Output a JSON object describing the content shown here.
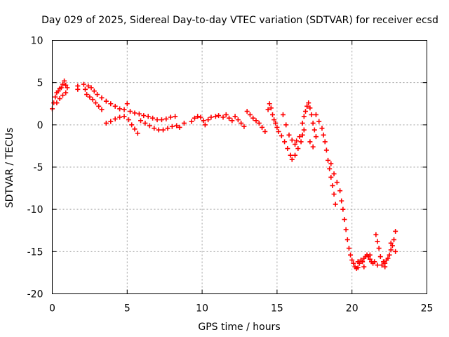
{
  "chart_data": {
    "type": "scatter",
    "title": "Day 029 of 2025, Sidereal Day-to-day VTEC variation (SDTVAR) for receiver ecsd",
    "xlabel": "GPS time / hours",
    "ylabel": "SDTVAR / TECUs",
    "xlim": [
      0,
      25
    ],
    "ylim": [
      -20,
      10
    ],
    "x_ticks": [
      0,
      5,
      10,
      15,
      20,
      25
    ],
    "y_ticks": [
      10,
      5,
      0,
      -5,
      -10,
      -15,
      -20
    ],
    "x_tick_labels": [
      "0",
      "5",
      "10",
      "15",
      "20",
      "25"
    ],
    "y_tick_labels": [
      "10",
      "5",
      "0",
      "-5",
      "-10",
      "-15",
      "-20"
    ],
    "grid": true,
    "marker": "plus",
    "series_color": "#ff0000",
    "series": [
      {
        "name": "SDTVAR",
        "points": [
          [
            0.0,
            1.9
          ],
          [
            0.1,
            2.6
          ],
          [
            0.2,
            3.3
          ],
          [
            0.3,
            3.8
          ],
          [
            0.4,
            4.0
          ],
          [
            0.5,
            4.3
          ],
          [
            0.6,
            4.4
          ],
          [
            0.7,
            4.8
          ],
          [
            0.8,
            5.2
          ],
          [
            0.9,
            4.7
          ],
          [
            1.0,
            4.4
          ],
          [
            0.3,
            2.6
          ],
          [
            0.5,
            3.1
          ],
          [
            0.7,
            3.5
          ],
          [
            0.9,
            3.8
          ],
          [
            1.7,
            4.6
          ],
          [
            1.7,
            4.2
          ],
          [
            2.1,
            4.8
          ],
          [
            2.2,
            4.2
          ],
          [
            2.3,
            3.6
          ],
          [
            2.5,
            3.3
          ],
          [
            2.7,
            3.0
          ],
          [
            2.9,
            2.6
          ],
          [
            3.1,
            2.2
          ],
          [
            3.3,
            1.8
          ],
          [
            2.4,
            4.6
          ],
          [
            2.6,
            4.4
          ],
          [
            2.8,
            4.0
          ],
          [
            3.0,
            3.6
          ],
          [
            3.3,
            3.2
          ],
          [
            3.6,
            2.8
          ],
          [
            3.9,
            2.5
          ],
          [
            4.2,
            2.2
          ],
          [
            4.5,
            1.9
          ],
          [
            4.8,
            1.8
          ],
          [
            5.0,
            2.5
          ],
          [
            5.2,
            1.6
          ],
          [
            5.5,
            1.4
          ],
          [
            5.8,
            1.3
          ],
          [
            6.1,
            1.1
          ],
          [
            6.4,
            1.0
          ],
          [
            6.7,
            0.8
          ],
          [
            7.0,
            0.6
          ],
          [
            7.3,
            0.6
          ],
          [
            7.6,
            0.7
          ],
          [
            7.9,
            0.9
          ],
          [
            8.2,
            1.0
          ],
          [
            3.6,
            0.2
          ],
          [
            3.9,
            0.4
          ],
          [
            4.2,
            0.7
          ],
          [
            4.5,
            0.9
          ],
          [
            4.8,
            1.0
          ],
          [
            5.1,
            0.6
          ],
          [
            5.3,
            0.0
          ],
          [
            5.5,
            -0.5
          ],
          [
            5.7,
            -1.0
          ],
          [
            5.9,
            0.5
          ],
          [
            6.2,
            0.2
          ],
          [
            6.5,
            -0.1
          ],
          [
            6.8,
            -0.4
          ],
          [
            7.1,
            -0.6
          ],
          [
            7.4,
            -0.6
          ],
          [
            7.7,
            -0.4
          ],
          [
            8.0,
            -0.2
          ],
          [
            8.3,
            -0.1
          ],
          [
            8.5,
            -0.3
          ],
          [
            8.8,
            0.2
          ],
          [
            9.3,
            0.4
          ],
          [
            9.5,
            0.8
          ],
          [
            9.7,
            1.0
          ],
          [
            9.9,
            0.9
          ],
          [
            10.1,
            0.5
          ],
          [
            10.2,
            0.0
          ],
          [
            10.4,
            0.6
          ],
          [
            10.6,
            0.9
          ],
          [
            10.9,
            1.0
          ],
          [
            11.1,
            1.1
          ],
          [
            11.4,
            0.9
          ],
          [
            11.6,
            1.2
          ],
          [
            11.8,
            0.8
          ],
          [
            12.0,
            0.5
          ],
          [
            12.2,
            1.0
          ],
          [
            12.4,
            0.6
          ],
          [
            12.6,
            0.2
          ],
          [
            12.8,
            -0.2
          ],
          [
            13.0,
            1.6
          ],
          [
            13.2,
            1.2
          ],
          [
            13.4,
            0.8
          ],
          [
            13.6,
            0.5
          ],
          [
            13.8,
            0.2
          ],
          [
            14.0,
            -0.3
          ],
          [
            14.2,
            -0.8
          ],
          [
            14.4,
            1.8
          ],
          [
            14.5,
            2.5
          ],
          [
            14.6,
            2.0
          ],
          [
            14.7,
            1.2
          ],
          [
            14.8,
            0.6
          ],
          [
            14.9,
            0.2
          ],
          [
            15.0,
            -0.3
          ],
          [
            15.1,
            -0.8
          ],
          [
            15.3,
            -1.3
          ],
          [
            15.5,
            -2.0
          ],
          [
            15.7,
            -2.8
          ],
          [
            15.9,
            -3.6
          ],
          [
            16.0,
            -4.1
          ],
          [
            16.2,
            -3.6
          ],
          [
            16.4,
            -2.8
          ],
          [
            16.6,
            -2.0
          ],
          [
            16.7,
            -1.2
          ],
          [
            16.8,
            -0.6
          ],
          [
            15.4,
            1.2
          ],
          [
            15.6,
            0.0
          ],
          [
            15.8,
            -1.2
          ],
          [
            16.0,
            -1.8
          ],
          [
            16.2,
            -2.3
          ],
          [
            16.3,
            -1.9
          ],
          [
            16.5,
            -1.4
          ],
          [
            16.7,
            0.2
          ],
          [
            16.8,
            1.0
          ],
          [
            16.9,
            1.6
          ],
          [
            17.0,
            2.2
          ],
          [
            17.1,
            2.6
          ],
          [
            17.2,
            2.0
          ],
          [
            17.3,
            1.2
          ],
          [
            17.4,
            0.2
          ],
          [
            17.5,
            -0.6
          ],
          [
            17.6,
            -1.4
          ],
          [
            17.2,
            -2.0
          ],
          [
            17.4,
            -2.6
          ],
          [
            17.6,
            1.2
          ],
          [
            17.8,
            0.4
          ],
          [
            18.0,
            -0.4
          ],
          [
            18.1,
            -1.2
          ],
          [
            18.2,
            -2.0
          ],
          [
            18.3,
            -3.0
          ],
          [
            18.4,
            -4.2
          ],
          [
            18.5,
            -5.2
          ],
          [
            18.6,
            -6.2
          ],
          [
            18.7,
            -7.2
          ],
          [
            18.8,
            -8.2
          ],
          [
            18.9,
            -9.4
          ],
          [
            18.6,
            -4.6
          ],
          [
            18.8,
            -5.8
          ],
          [
            19.0,
            -6.8
          ],
          [
            19.2,
            -7.8
          ],
          [
            19.3,
            -9.0
          ],
          [
            19.4,
            -10.0
          ],
          [
            19.5,
            -11.2
          ],
          [
            19.6,
            -12.4
          ],
          [
            19.7,
            -13.6
          ],
          [
            19.8,
            -14.6
          ],
          [
            19.9,
            -15.4
          ],
          [
            20.0,
            -16.0
          ],
          [
            20.1,
            -16.4
          ],
          [
            20.2,
            -16.8
          ],
          [
            20.3,
            -17.0
          ],
          [
            20.4,
            -16.9
          ],
          [
            20.5,
            -16.4
          ],
          [
            20.6,
            -16.0
          ],
          [
            20.7,
            -16.2
          ],
          [
            20.8,
            -15.8
          ],
          [
            20.9,
            -15.6
          ],
          [
            21.0,
            -15.4
          ],
          [
            21.1,
            -15.6
          ],
          [
            21.2,
            -15.9
          ],
          [
            21.3,
            -16.2
          ],
          [
            21.4,
            -16.4
          ],
          [
            21.5,
            -16.2
          ],
          [
            21.6,
            -13.0
          ],
          [
            21.7,
            -13.8
          ],
          [
            21.8,
            -14.6
          ],
          [
            21.9,
            -15.6
          ],
          [
            22.0,
            -16.6
          ],
          [
            22.1,
            -16.2
          ],
          [
            22.2,
            -16.4
          ],
          [
            22.3,
            -16.0
          ],
          [
            22.4,
            -15.8
          ],
          [
            22.5,
            -15.4
          ],
          [
            22.6,
            -14.8
          ],
          [
            22.6,
            -14.0
          ],
          [
            22.7,
            -14.3
          ],
          [
            22.8,
            -13.6
          ],
          [
            22.9,
            -12.6
          ],
          [
            22.9,
            -15.0
          ],
          [
            20.4,
            -16.2
          ],
          [
            20.8,
            -16.8
          ],
          [
            21.2,
            -15.4
          ],
          [
            21.7,
            -16.6
          ],
          [
            22.2,
            -16.8
          ]
        ]
      }
    ]
  }
}
